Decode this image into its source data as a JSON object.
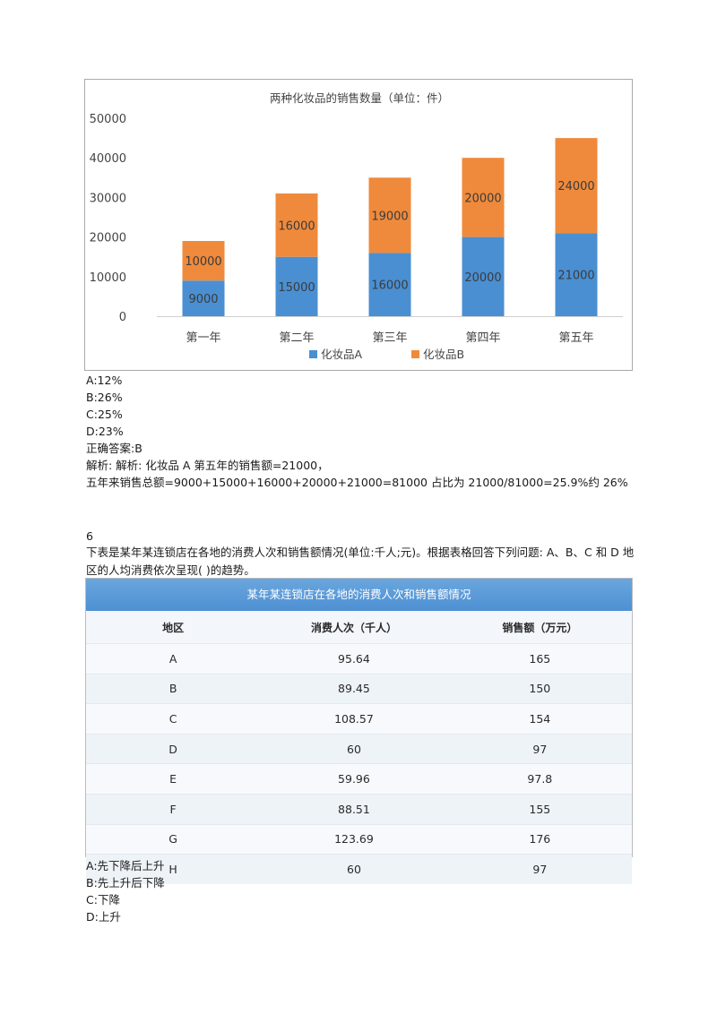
{
  "chart_data": {
    "type": "bar",
    "stacked": true,
    "title": "两种化妆品的销售数量（单位：件）",
    "categories": [
      "第一年",
      "第二年",
      "第三年",
      "第四年",
      "第五年"
    ],
    "series": [
      {
        "name": "化妆品A",
        "values": [
          9000,
          15000,
          16000,
          20000,
          21000
        ],
        "color": "#4a8fd2"
      },
      {
        "name": "化妆品B",
        "values": [
          10000,
          16000,
          19000,
          20000,
          24000
        ],
        "color": "#ef8a3c"
      }
    ],
    "yticks": [
      "0",
      "10000",
      "20000",
      "30000",
      "40000",
      "50000"
    ],
    "ylim": [
      0,
      50000
    ],
    "legend": "bottom",
    "grid": false
  },
  "q5": {
    "options": [
      "A:12%",
      "B:26%",
      "C:25%",
      "D:23%"
    ],
    "answer": "正确答案:B",
    "analysis_line1": "解析: 解析: 化妆品  A 第五年的销售额=21000，",
    "analysis_line2": "五年来销售总额=9000+15000+16000+20000+21000=81000 占比为  21000/81000=25.9%约  26%"
  },
  "q6": {
    "number": "6",
    "question": "下表是某年某连锁店在各地的消费人次和销售额情况(单位:千人;元)。根据表格回答下列问题:  A、B、C 和  D 地区的人均消费依次呈现(  )的趋势。",
    "table": {
      "title": "某年某连锁店在各地的消费人次和销售额情况",
      "headers": [
        "地区",
        "消费人次（千人）",
        "销售额（万元）"
      ],
      "rows": [
        [
          "A",
          "95.64",
          "165"
        ],
        [
          "B",
          "89.45",
          "150"
        ],
        [
          "C",
          "108.57",
          "154"
        ],
        [
          "D",
          "60",
          "97"
        ],
        [
          "E",
          "59.96",
          "97.8"
        ],
        [
          "F",
          "88.51",
          "155"
        ],
        [
          "G",
          "123.69",
          "176"
        ],
        [
          "H",
          "60",
          "97"
        ]
      ]
    },
    "options": [
      "A:先下降后上升",
      "B:先上升后下降",
      "C:下降",
      "D:上升"
    ]
  }
}
